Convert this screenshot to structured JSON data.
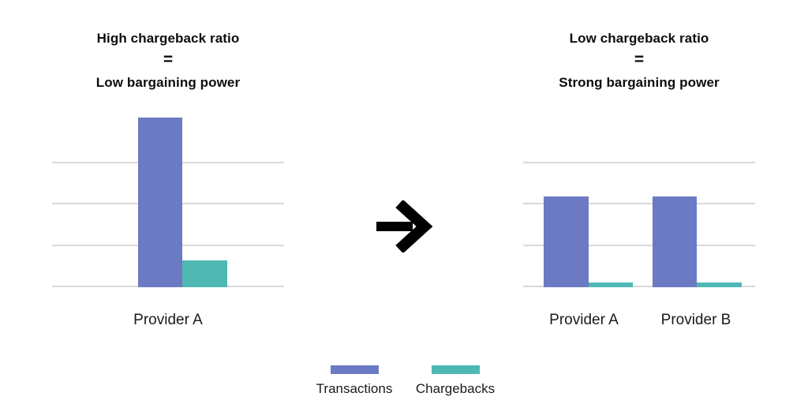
{
  "colors": {
    "transactions": "#6b7ac3",
    "chargebacks": "#4fb8b2",
    "gridline": "#d9d9d9",
    "text": "#0d0d0d",
    "arrow": "#000000"
  },
  "left_panel": {
    "title_line1": "High chargeback ratio",
    "equals": "=",
    "title_line2": "Low bargaining power"
  },
  "right_panel": {
    "title_line1": "Low chargeback ratio",
    "equals": "=",
    "title_line2": "Strong bargaining power"
  },
  "legend": {
    "items": [
      {
        "label": "Transactions",
        "color": "#6b7ac3"
      },
      {
        "label": "Chargebacks",
        "color": "#4fb8b2"
      }
    ]
  },
  "chart_data": [
    {
      "type": "bar",
      "title": "High chargeback ratio = Low bargaining power",
      "categories": [
        "Provider A"
      ],
      "series": [
        {
          "name": "Transactions",
          "values": [
            4.1
          ]
        },
        {
          "name": "Chargebacks",
          "values": [
            0.65
          ]
        }
      ],
      "xlabel": "",
      "ylabel": "",
      "ylim": [
        0,
        4.3
      ],
      "gridlines_y": [
        1,
        2,
        3
      ],
      "yaxis_tick_labels": "none (relative units, gridline spacing = 1)",
      "grid": true,
      "legend_position": "shared bottom center"
    },
    {
      "type": "bar",
      "title": "Low chargeback ratio = Strong bargaining power",
      "categories": [
        "Provider A",
        "Provider B"
      ],
      "series": [
        {
          "name": "Transactions",
          "values": [
            2.2,
            2.2
          ]
        },
        {
          "name": "Chargebacks",
          "values": [
            0.12,
            0.12
          ]
        }
      ],
      "xlabel": "",
      "ylabel": "",
      "ylim": [
        0,
        4.3
      ],
      "gridlines_y": [
        1,
        2,
        3
      ],
      "yaxis_tick_labels": "none (relative units, gridline spacing = 1)",
      "grid": true,
      "legend_position": "shared bottom center"
    }
  ]
}
